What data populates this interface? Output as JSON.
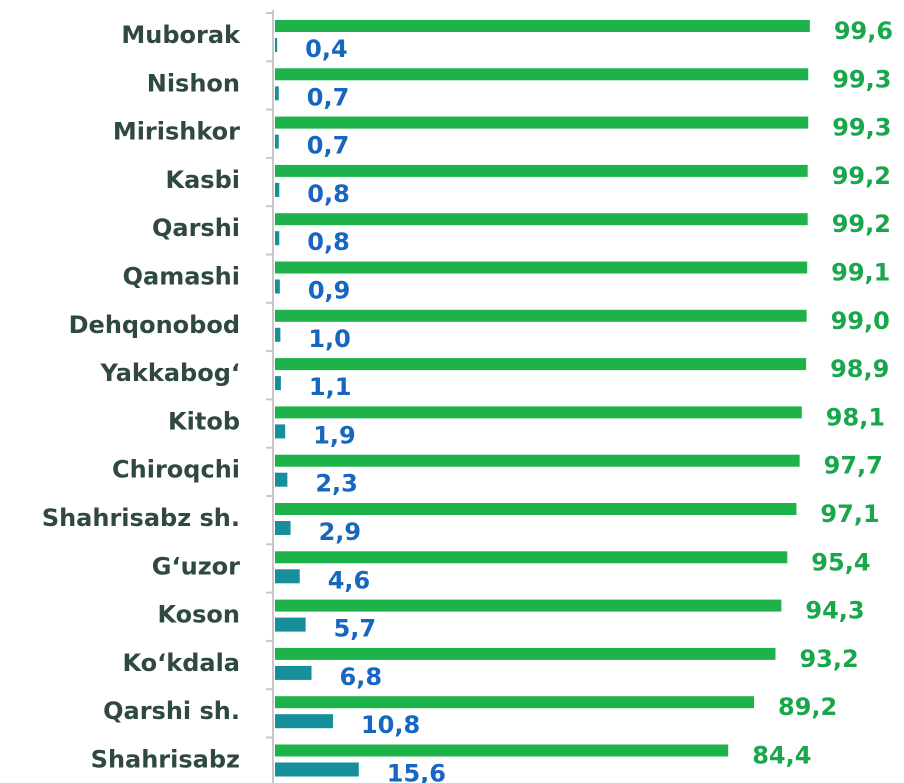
{
  "chart_data": {
    "type": "bar",
    "orientation": "horizontal",
    "categories": [
      "Muborak",
      "Nishon",
      "Mirishkor",
      "Kasbi",
      "Qarshi",
      "Qamashi",
      "Dehqonobod",
      "Yakkabog‘",
      "Kitob",
      "Chiroqchi",
      "Shahrisabz sh.",
      "G‘uzor",
      "Koson",
      "Ko‘kdala",
      "Qarshi sh.",
      "Shahrisabz"
    ],
    "series": [
      {
        "color": "#1db34a",
        "values": [
          99.6,
          99.3,
          99.3,
          99.2,
          99.2,
          99.1,
          99.0,
          98.9,
          98.1,
          97.7,
          97.1,
          95.4,
          94.3,
          93.2,
          89.2,
          84.4
        ],
        "value_labels": [
          "99,6",
          "99,3",
          "99,3",
          "99,2",
          "99,2",
          "99,1",
          "99,0",
          "98,9",
          "98,1",
          "97,7",
          "97,1",
          "95,4",
          "94,3",
          "93,2",
          "89,2",
          "84,4"
        ]
      },
      {
        "color": "#168f9a",
        "values": [
          0.4,
          0.7,
          0.7,
          0.8,
          0.8,
          0.9,
          1.0,
          1.1,
          1.9,
          2.3,
          2.9,
          4.6,
          5.7,
          6.8,
          10.8,
          15.6
        ],
        "value_labels": [
          "0,4",
          "0,7",
          "0,7",
          "0,8",
          "0,8",
          "0,9",
          "1,0",
          "1,1",
          "1,9",
          "2,3",
          "2,9",
          "4,6",
          "5,7",
          "6,8",
          "10,8",
          "15,6"
        ]
      }
    ]
  }
}
